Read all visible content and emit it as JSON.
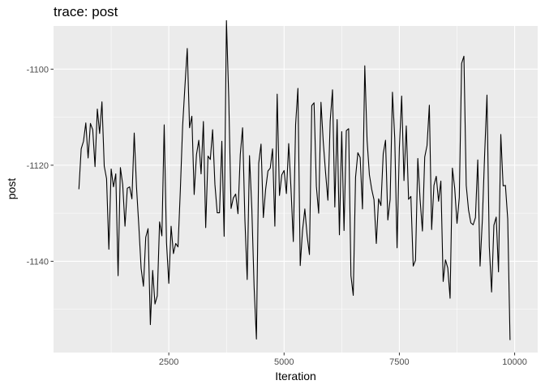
{
  "chart_data": {
    "type": "line",
    "title": "trace: post",
    "xlabel": "Iteration",
    "ylabel": "post",
    "xlim": [
      0,
      10500
    ],
    "ylim": [
      -1159,
      -1091
    ],
    "x_ticks": [
      2500,
      5000,
      7500,
      10000
    ],
    "y_ticks": [
      -1140,
      -1120,
      -1100
    ],
    "x_tick_labels": [
      "2500",
      "5000",
      "7500",
      "10000"
    ],
    "y_tick_labels": [
      "-1140",
      "-1120",
      "-1100"
    ],
    "grid": true,
    "legend": "none",
    "colors": {
      "panel": "#ebebeb",
      "grid_major": "#ffffff",
      "line": "#000000",
      "tick_label": "#4d4d4d"
    },
    "series": [
      {
        "x_start": 550,
        "x_step": 50,
        "values": [
          -1125,
          -1116.6,
          -1115,
          -1111.2,
          -1118.5,
          -1111.3,
          -1112.6,
          -1120.3,
          -1108.3,
          -1113.4,
          -1106.8,
          -1120.2,
          -1122.8,
          -1137.5,
          -1120.8,
          -1124.5,
          -1121.8,
          -1143,
          -1120.5,
          -1124,
          -1132.7,
          -1124.8,
          -1124.5,
          -1127,
          -1113.3,
          -1124.6,
          -1132.7,
          -1141.5,
          -1145.2,
          -1135,
          -1133.2,
          -1153.2,
          -1141.9,
          -1148.9,
          -1147.2,
          -1131.8,
          -1134.7,
          -1111.6,
          -1136.1,
          -1144.6,
          -1132.7,
          -1138.4,
          -1136.3,
          -1137,
          -1125.2,
          -1111.8,
          -1103.5,
          -1095.7,
          -1112.2,
          -1109.8,
          -1126.1,
          -1117.8,
          -1114.8,
          -1121.8,
          -1110.9,
          -1133,
          -1118.1,
          -1118.8,
          -1112.6,
          -1124,
          -1129.9,
          -1129.9,
          -1115,
          -1134.8,
          -1089.9,
          -1106,
          -1129,
          -1126.8,
          -1126,
          -1130.1,
          -1117.8,
          -1112.2,
          -1131.3,
          -1143.8,
          -1118,
          -1128.9,
          -1145.4,
          -1156.2,
          -1119.6,
          -1115.6,
          -1130.9,
          -1125,
          -1121.2,
          -1120.6,
          -1116.6,
          -1132.7,
          -1105.2,
          -1126.3,
          -1122,
          -1121.1,
          -1125.9,
          -1115.5,
          -1124.9,
          -1135.9,
          -1111.5,
          -1104,
          -1140.9,
          -1133.6,
          -1129.1,
          -1134.7,
          -1138.6,
          -1107.6,
          -1107,
          -1124.4,
          -1130,
          -1106.9,
          -1115.2,
          -1121.6,
          -1127.3,
          -1110.8,
          -1104.3,
          -1128.7,
          -1110.5,
          -1134.5,
          -1113,
          -1133.6,
          -1112.8,
          -1112.4,
          -1143,
          -1147.1,
          -1122.5,
          -1117.4,
          -1118.4,
          -1129.1,
          -1099.3,
          -1114.8,
          -1122,
          -1125,
          -1127.2,
          -1136.3,
          -1127,
          -1128.4,
          -1117.6,
          -1114.8,
          -1131.4,
          -1127.1,
          -1104.8,
          -1114.4,
          -1137.2,
          -1116.4,
          -1105.6,
          -1123.2,
          -1111.8,
          -1127.1,
          -1126.5,
          -1141,
          -1139.8,
          -1118.6,
          -1127.2,
          -1133.7,
          -1118.3,
          -1115.9,
          -1107.5,
          -1133.4,
          -1124.2,
          -1122.3,
          -1127.5,
          -1123.3,
          -1144.2,
          -1139.7,
          -1141.4,
          -1147.7,
          -1120.6,
          -1124.8,
          -1132.1,
          -1126.7,
          -1098.8,
          -1097.3,
          -1124.2,
          -1129.3,
          -1132,
          -1132.4,
          -1130.9,
          -1118.9,
          -1141,
          -1131.3,
          -1117.6,
          -1105.4,
          -1136.9,
          -1146.4,
          -1132.5,
          -1130.8,
          -1142.2,
          -1113.6,
          -1124.3,
          -1124.2,
          -1131.2,
          -1156.4
        ]
      }
    ]
  }
}
